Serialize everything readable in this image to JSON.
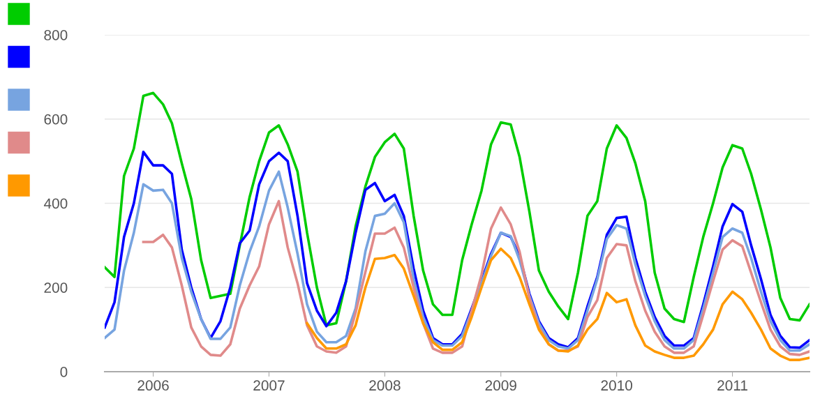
{
  "chart_data": {
    "type": "line",
    "x": [
      "2005-08",
      "2005-09",
      "2005-10",
      "2005-11",
      "2005-12",
      "2006-01",
      "2006-02",
      "2006-03",
      "2006-04",
      "2006-05",
      "2006-06",
      "2006-07",
      "2006-08",
      "2006-09",
      "2006-10",
      "2006-11",
      "2006-12",
      "2007-01",
      "2007-02",
      "2007-03",
      "2007-04",
      "2007-05",
      "2007-06",
      "2007-07",
      "2007-08",
      "2007-09",
      "2007-10",
      "2007-11",
      "2007-12",
      "2008-01",
      "2008-02",
      "2008-03",
      "2008-04",
      "2008-05",
      "2008-06",
      "2008-07",
      "2008-08",
      "2008-09",
      "2008-10",
      "2008-11",
      "2008-12",
      "2009-01",
      "2009-02",
      "2009-03",
      "2009-04",
      "2009-05",
      "2009-06",
      "2009-07",
      "2009-08",
      "2009-09",
      "2009-10",
      "2009-11",
      "2009-12",
      "2010-01",
      "2010-02",
      "2010-03",
      "2010-04",
      "2010-05",
      "2010-06",
      "2010-07",
      "2010-08",
      "2010-09",
      "2010-10",
      "2010-11",
      "2010-12",
      "2011-01",
      "2011-02",
      "2011-03",
      "2011-04",
      "2011-05",
      "2011-06",
      "2011-07",
      "2011-08",
      "2011-09"
    ],
    "series": [
      {
        "color": "#00cc00",
        "values": [
          248,
          225,
          465,
          530,
          655,
          662,
          635,
          590,
          495,
          410,
          265,
          175,
          180,
          185,
          300,
          415,
          500,
          568,
          585,
          540,
          475,
          330,
          200,
          110,
          115,
          215,
          345,
          440,
          510,
          545,
          565,
          530,
          370,
          240,
          160,
          135,
          135,
          265,
          350,
          430,
          540,
          592,
          587,
          510,
          380,
          240,
          190,
          155,
          125,
          235,
          370,
          405,
          530,
          585,
          555,
          495,
          405,
          235,
          150,
          125,
          118,
          225,
          320,
          400,
          485,
          538,
          530,
          470,
          385,
          295,
          175,
          125,
          122,
          160
        ]
      },
      {
        "color": "#0000ff",
        "values": [
          105,
          165,
          320,
          400,
          522,
          490,
          490,
          470,
          290,
          200,
          125,
          80,
          120,
          200,
          305,
          335,
          445,
          500,
          520,
          500,
          370,
          210,
          145,
          108,
          140,
          215,
          330,
          432,
          448,
          405,
          420,
          370,
          245,
          145,
          80,
          65,
          65,
          90,
          150,
          215,
          280,
          330,
          320,
          275,
          185,
          120,
          80,
          65,
          58,
          80,
          155,
          225,
          325,
          365,
          368,
          270,
          190,
          130,
          85,
          62,
          62,
          80,
          160,
          250,
          345,
          398,
          380,
          300,
          220,
          135,
          85,
          58,
          57,
          75
        ]
      },
      {
        "color": "#77a4e0",
        "values": [
          80,
          100,
          240,
          330,
          445,
          430,
          432,
          400,
          270,
          190,
          125,
          78,
          78,
          105,
          205,
          285,
          345,
          430,
          475,
          390,
          280,
          160,
          95,
          70,
          70,
          85,
          150,
          286,
          370,
          375,
          400,
          355,
          220,
          130,
          75,
          62,
          62,
          85,
          145,
          210,
          275,
          330,
          322,
          265,
          180,
          115,
          75,
          60,
          55,
          75,
          145,
          220,
          315,
          348,
          340,
          255,
          180,
          120,
          75,
          55,
          55,
          75,
          150,
          235,
          320,
          340,
          330,
          270,
          190,
          120,
          75,
          50,
          50,
          65
        ]
      },
      {
        "color": "#e08a8a",
        "values": [
          null,
          null,
          null,
          null,
          308,
          308,
          325,
          295,
          205,
          105,
          60,
          40,
          38,
          65,
          150,
          205,
          250,
          350,
          405,
          295,
          210,
          110,
          60,
          48,
          45,
          60,
          140,
          237,
          328,
          328,
          342,
          295,
          200,
          115,
          55,
          45,
          45,
          60,
          145,
          230,
          340,
          390,
          350,
          285,
          175,
          105,
          65,
          50,
          50,
          60,
          130,
          170,
          270,
          303,
          300,
          215,
          145,
          95,
          60,
          45,
          45,
          60,
          135,
          215,
          290,
          312,
          298,
          235,
          165,
          100,
          60,
          42,
          40,
          48
        ]
      },
      {
        "color": "#ff9900",
        "values": [
          null,
          null,
          null,
          null,
          null,
          null,
          null,
          null,
          null,
          null,
          null,
          null,
          null,
          null,
          null,
          null,
          null,
          null,
          null,
          null,
          null,
          115,
          80,
          55,
          55,
          65,
          110,
          200,
          268,
          270,
          277,
          245,
          180,
          115,
          70,
          52,
          52,
          70,
          130,
          200,
          265,
          292,
          270,
          225,
          160,
          100,
          65,
          50,
          48,
          62,
          100,
          125,
          187,
          165,
          172,
          110,
          62,
          48,
          40,
          33,
          33,
          38,
          65,
          100,
          160,
          190,
          172,
          140,
          100,
          55,
          38,
          28,
          28,
          33
        ]
      }
    ],
    "xlim": [
      "2005-08",
      "2011-09"
    ],
    "xticks": [
      "2006",
      "2007",
      "2008",
      "2009",
      "2010",
      "2011"
    ],
    "ylim": [
      0,
      800
    ],
    "yticks": [
      0,
      200,
      400,
      600,
      800
    ],
    "grid": "y",
    "marker": "none",
    "line_style": "solid"
  }
}
